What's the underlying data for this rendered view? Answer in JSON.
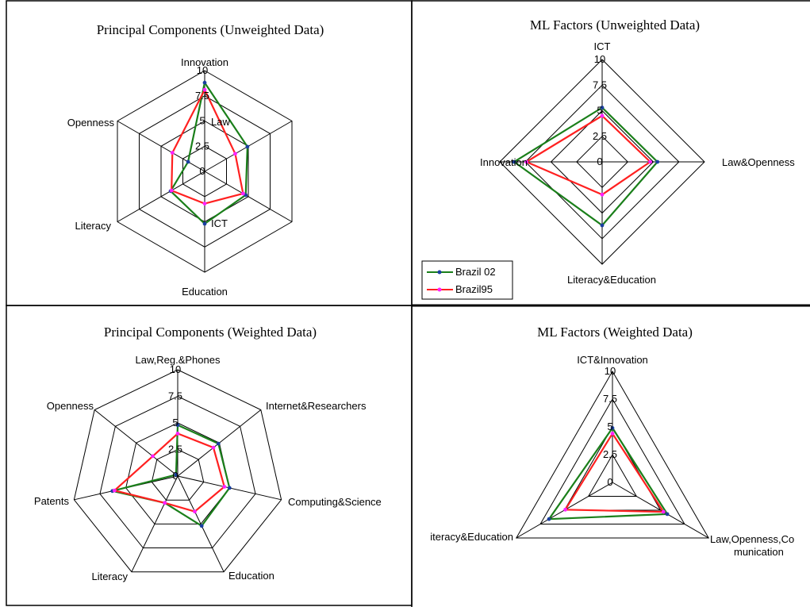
{
  "colors": {
    "grid": "#000000",
    "panel_border": "#000000",
    "brazil02_line": "#1a7f1a",
    "brazil02_marker": "#1a3fa0",
    "brazil95_line": "#ff2020",
    "brazil95_marker": "#ff22ff"
  },
  "legend": {
    "entries": [
      "Brazil 02",
      "Brazil95"
    ]
  },
  "chart_data": [
    {
      "type": "radar",
      "title": "Principal Components (Unweighted Data)",
      "axes": [
        "Innovation",
        "Law",
        "ICT",
        "Education",
        "Literacy",
        "Openness"
      ],
      "ticks": [
        "0",
        "2.5",
        "5",
        "7.5",
        "10"
      ],
      "rmax": 10,
      "series": [
        {
          "name": "Brazil 02",
          "values": [
            8.8,
            4.9,
            4.7,
            5.2,
            3.9,
            1.9
          ]
        },
        {
          "name": "Brazil95",
          "values": [
            8.1,
            3.5,
            4.4,
            3.2,
            3.8,
            3.7
          ]
        }
      ]
    },
    {
      "type": "radar",
      "title": "ML Factors (Unweighted Data)",
      "axes": [
        "ICT",
        "Law&Openness",
        "Literacy&Education",
        "Innovation"
      ],
      "ticks": [
        "0",
        "2.5",
        "5",
        "7.5",
        "10"
      ],
      "rmax": 10,
      "series": [
        {
          "name": "Brazil 02",
          "values": [
            5.3,
            5.4,
            6.2,
            8.6
          ]
        },
        {
          "name": "Brazil95",
          "values": [
            4.5,
            4.7,
            3.2,
            7.4
          ]
        }
      ]
    },
    {
      "type": "radar",
      "title": "Principal Components (Weighted Data)",
      "axes": [
        "Law,Reg.&Phones",
        "Internet&Researchers",
        "Computing&Science",
        "Education",
        "Literacy",
        "Patents",
        "Openness"
      ],
      "ticks": [
        "0",
        "2.5",
        "5",
        "7.5",
        "10"
      ],
      "rmax": 10,
      "series": [
        {
          "name": "Brazil 02",
          "values": [
            4.8,
            4.9,
            5.0,
            5.2,
            2.8,
            6.3,
            0.2
          ]
        },
        {
          "name": "Brazil95",
          "values": [
            4.0,
            4.3,
            4.5,
            3.7,
            2.8,
            6.1,
            3.0
          ]
        }
      ]
    },
    {
      "type": "radar",
      "title": "ML Factors (Weighted Data)",
      "axes": [
        "ICT&Innovation",
        "Law,Openness,Communication",
        "Literacy&Education"
      ],
      "axis_label_lines": [
        [
          "ICT&Innovation"
        ],
        [
          "Law,Openness,Co",
          "munication"
        ],
        [
          "iteracy&Education"
        ]
      ],
      "ticks": [
        "0",
        "2.5",
        "5",
        "7.5",
        "10"
      ],
      "rmax": 10,
      "series": [
        {
          "name": "Brazil 02",
          "values": [
            4.9,
            5.7,
            6.6
          ]
        },
        {
          "name": "Brazil95",
          "values": [
            4.4,
            5.3,
            4.9
          ]
        }
      ]
    }
  ]
}
